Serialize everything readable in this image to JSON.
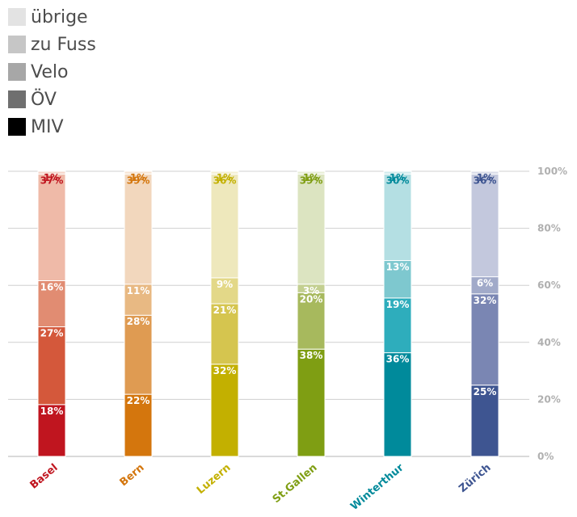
{
  "chart_data": {
    "type": "bar",
    "stacked": true,
    "categories": [
      "Basel",
      "Bern",
      "Luzern",
      "St.Gallen",
      "Winterthur",
      "Zürich"
    ],
    "series": [
      {
        "name": "MIV",
        "values": [
          18,
          22,
          32,
          38,
          36,
          25
        ]
      },
      {
        "name": "ÖV",
        "values": [
          27,
          28,
          21,
          20,
          19,
          32
        ]
      },
      {
        "name": "Velo",
        "values": [
          16,
          11,
          9,
          3,
          13,
          6
        ]
      },
      {
        "name": "zu Fuss",
        "values": [
          37,
          39,
          36,
          39,
          30,
          36
        ]
      },
      {
        "name": "übrige",
        "values": [
          1,
          1,
          1,
          1,
          1,
          1
        ]
      }
    ],
    "yticks": [
      "0%",
      "20%",
      "40%",
      "60%",
      "80%",
      "100%"
    ],
    "ylim": [
      0,
      100
    ],
    "grid": true,
    "legend_position": "top-left",
    "legend_order": [
      "übrige",
      "zu Fuss",
      "Velo",
      "ÖV",
      "MIV"
    ],
    "legend_colors": {
      "übrige": "#e3e3e3",
      "zu Fuss": "#c6c6c6",
      "Velo": "#a7a7a7",
      "ÖV": "#6f6f6f",
      "MIV": "#000000"
    },
    "category_colors": {
      "Basel": {
        "label": "#c0151f",
        "segments": [
          "#c0151f",
          "#d4583b",
          "#e18c72",
          "#efbaa8",
          "#f6d8cd"
        ]
      },
      "Bern": {
        "label": "#d4760d",
        "segments": [
          "#d4760d",
          "#df9b52",
          "#e8b983",
          "#f2d7bd",
          "#f7e6d6"
        ]
      },
      "Luzern": {
        "label": "#c3b000",
        "segments": [
          "#c3b000",
          "#d5c54f",
          "#e3d888",
          "#eee8bc",
          "#f4f0d6"
        ]
      },
      "St.Gallen": {
        "label": "#7f9e13",
        "segments": [
          "#7f9e13",
          "#a7b95d",
          "#c3cf90",
          "#dce4c1",
          "#eaefd9"
        ]
      },
      "Winterthur": {
        "label": "#008a9b",
        "segments": [
          "#008a9b",
          "#2eadbc",
          "#7ec8cf",
          "#b4dfe3",
          "#d4ecee"
        ]
      },
      "Zürich": {
        "label": "#3e5591",
        "segments": [
          "#3e5591",
          "#7a86b3",
          "#a1aac9",
          "#c3c8dd",
          "#dcdfea"
        ]
      }
    }
  }
}
